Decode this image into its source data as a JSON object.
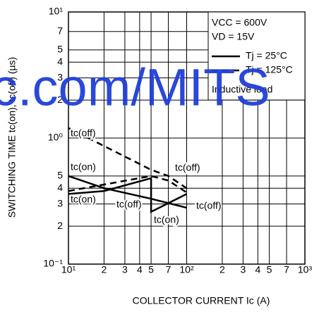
{
  "chart_data": {
    "type": "line",
    "x_label": "COLLECTOR CURRENT  Ic (A)",
    "y_label": "SWITCHING TIME  tc(on), tc(off) (µs)",
    "xscale": "log",
    "yscale": "log",
    "grid": true,
    "xlim": [
      10,
      1000
    ],
    "ylim": [
      0.1,
      10
    ],
    "xticks": [
      {
        "value": 10,
        "label": "10¹"
      },
      {
        "value": 20,
        "label": "2"
      },
      {
        "value": 30,
        "label": "3"
      },
      {
        "value": 40,
        "label": "4"
      },
      {
        "value": 50,
        "label": "5"
      },
      {
        "value": 70,
        "label": "7"
      },
      {
        "value": 100,
        "label": "10²"
      },
      {
        "value": 200,
        "label": "2"
      },
      {
        "value": 300,
        "label": "3"
      },
      {
        "value": 400,
        "label": "4"
      },
      {
        "value": 500,
        "label": "5"
      },
      {
        "value": 700,
        "label": "7"
      },
      {
        "value": 1000,
        "label": "10³"
      }
    ],
    "yticks": [
      {
        "value": 0.1,
        "label": "10⁻¹"
      },
      {
        "value": 0.2,
        "label": "2"
      },
      {
        "value": 0.3,
        "label": "3"
      },
      {
        "value": 0.4,
        "label": "4"
      },
      {
        "value": 0.5,
        "label": "5"
      },
      {
        "value": 1,
        "label": "10⁰"
      },
      2,
      3,
      4,
      5,
      7,
      {
        "value": 10,
        "label": "10¹"
      }
    ],
    "series": [
      {
        "dash": true,
        "color": "#000000",
        "x": [
          10,
          50,
          70,
          100
        ],
        "values": [
          1.2,
          0.56,
          0.5,
          0.4
        ]
      },
      {
        "dash": false,
        "color": "#000000",
        "x": [
          10,
          20,
          50,
          100
        ],
        "values": [
          0.5,
          0.4,
          0.33,
          0.28
        ]
      },
      {
        "dash": true,
        "color": "#000000",
        "x": [
          10,
          50,
          70,
          100
        ],
        "values": [
          0.38,
          0.5,
          0.46,
          0.37
        ]
      },
      {
        "dash": false,
        "color": "#000000",
        "x": [
          10,
          20,
          50,
          50,
          100
        ],
        "values": [
          0.36,
          0.38,
          0.48,
          0.26,
          0.36
        ]
      }
    ],
    "legend": [
      {
        "label": "Tj = 25°C",
        "dash": false
      },
      {
        "label": "Tj = 125°C",
        "dash": true
      }
    ],
    "conditions": [
      "VCC = 600V",
      "VD = 15V",
      "Inductive load"
    ],
    "annotations": [
      "tc(off)",
      "tc(on)",
      "tc(off)",
      "tc(on)",
      "tc(off)",
      "tc(on)",
      "tc(off)"
    ],
    "watermark": "c.com/MITS"
  }
}
